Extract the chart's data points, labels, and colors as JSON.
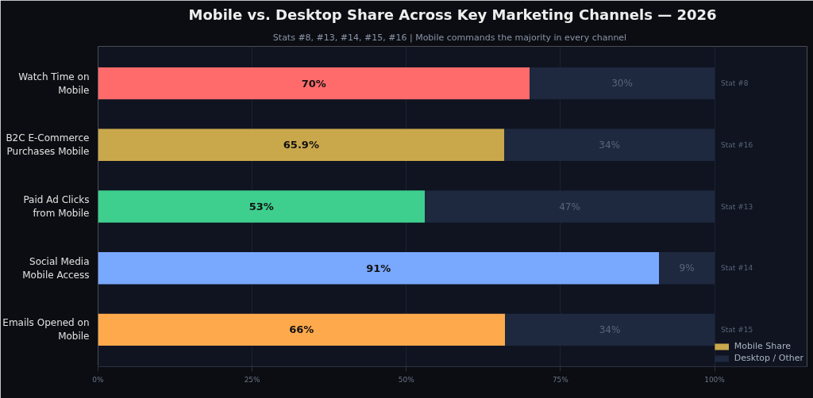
{
  "chart_data": {
    "type": "bar",
    "orientation": "horizontal",
    "stacked": true,
    "title": "Mobile vs. Desktop Share Across Key Marketing Channels — 2026",
    "subtitle": "Stats #8, #13, #14, #15, #16  |  Mobile commands the majority in every channel",
    "categories": [
      "Watch Time on Mobile",
      "B2C E-Commerce Purchases Mobile",
      "Paid Ad Clicks from Mobile",
      "Social Media Mobile Access",
      "Emails Opened on Mobile"
    ],
    "series": [
      {
        "name": "Mobile Share",
        "color": "#c9a84c",
        "colors": [
          "#ff6b6b",
          "#c9a84c",
          "#3ecf8e",
          "#79a8ff",
          "#ffa94d"
        ],
        "values": [
          70,
          65.9,
          53,
          91,
          66
        ],
        "value_labels": [
          "70%",
          "65.9%",
          "53%",
          "91%",
          "66%"
        ]
      },
      {
        "name": "Desktop / Other",
        "color": "#1e2940",
        "values": [
          30,
          34.1,
          47,
          9,
          34
        ],
        "value_labels": [
          "30%",
          "34%",
          "47%",
          "9%",
          "34%"
        ]
      }
    ],
    "xlim": [
      0,
      115
    ],
    "xticks": [
      {
        "value": 0,
        "label": "0%"
      },
      {
        "value": 25,
        "label": "25%"
      },
      {
        "value": 50,
        "label": "50%"
      },
      {
        "value": 75,
        "label": "75%"
      },
      {
        "value": 100,
        "label": "100%"
      }
    ],
    "grid": "x",
    "legend": "bottom right",
    "annotations": [
      "Stat #8",
      "Stat #16",
      "Stat #13",
      "Stat #14",
      "Stat #15"
    ]
  }
}
